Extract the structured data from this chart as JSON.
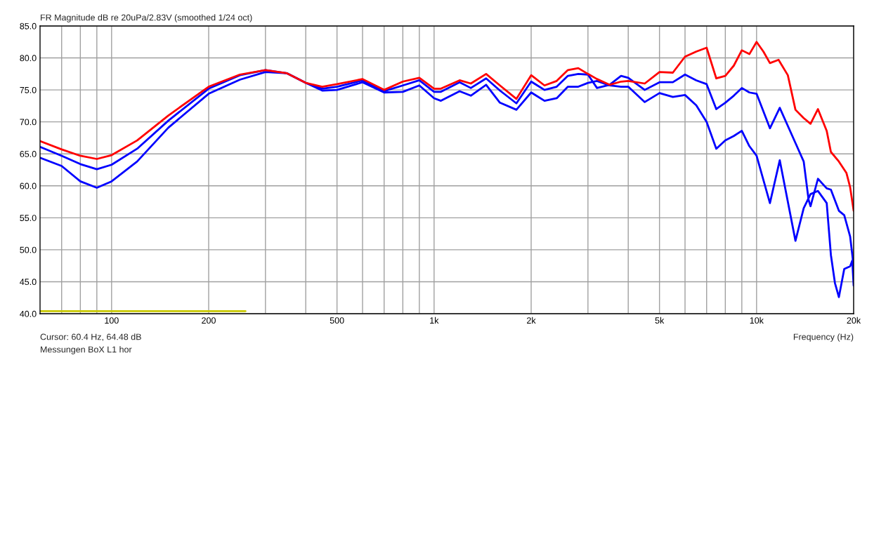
{
  "chart_data": {
    "type": "line",
    "title": "FR Magnitude dB re 20uPa/2.83V (smoothed 1/24 oct)",
    "xlabel": "Frequency (Hz)",
    "annotations": [
      "Cursor: 60.4 Hz, 64.48 dB",
      "Messungen BoX L1 hor"
    ],
    "log": "x",
    "grid": true,
    "line_style": "solid",
    "xlim": [
      60,
      20000
    ],
    "ylim": [
      40,
      85
    ],
    "xticks": [
      {
        "value": 70,
        "label": null
      },
      {
        "value": 80,
        "label": null
      },
      {
        "value": 90,
        "label": null
      },
      100,
      200,
      {
        "value": 300,
        "label": null
      },
      {
        "value": 400,
        "label": null
      },
      500,
      {
        "value": 600,
        "label": null
      },
      {
        "value": 700,
        "label": null
      },
      {
        "value": 800,
        "label": null
      },
      {
        "value": 900,
        "label": null
      },
      {
        "value": 1000,
        "label": "1k"
      },
      {
        "value": 2000,
        "label": "2k"
      },
      {
        "value": 3000,
        "label": null
      },
      {
        "value": 4000,
        "label": null
      },
      {
        "value": 5000,
        "label": "5k"
      },
      {
        "value": 6000,
        "label": null
      },
      {
        "value": 7000,
        "label": null
      },
      {
        "value": 8000,
        "label": null
      },
      {
        "value": 9000,
        "label": null
      },
      {
        "value": 10000,
        "label": "10k"
      },
      {
        "value": 20000,
        "label": "20k"
      }
    ],
    "yticks": [
      {
        "value": 40,
        "label": "40.0"
      },
      {
        "value": 45,
        "label": "45.0"
      },
      {
        "value": 50,
        "label": "50.0"
      },
      {
        "value": 55,
        "label": "55.0"
      },
      {
        "value": 60,
        "label": "60.0"
      },
      {
        "value": 65,
        "label": "65.0"
      },
      {
        "value": 70,
        "label": "70.0"
      },
      {
        "value": 75,
        "label": "75.0"
      },
      {
        "value": 80,
        "label": "80.0"
      },
      {
        "value": 85,
        "label": "85.0"
      }
    ],
    "series": [
      {
        "color": "#0000ff",
        "x": [
          60,
          70,
          80,
          90,
          100,
          120,
          150,
          200,
          250,
          300,
          350,
          400,
          450,
          500,
          600,
          700,
          800,
          900,
          1000,
          1050,
          1200,
          1300,
          1450,
          1600,
          1800,
          2000,
          2200,
          2400,
          2600,
          2800,
          3000,
          3200,
          3500,
          3800,
          4000,
          4500,
          5000,
          5500,
          6000,
          6500,
          7000,
          7500,
          8000,
          8500,
          9000,
          9500,
          10000,
          11000,
          11800,
          13200,
          14000,
          14700,
          15500,
          16500,
          17000,
          17500,
          18000,
          18700,
          19500,
          19800,
          20000
        ],
        "values": [
          64.4,
          63.1,
          60.7,
          59.7,
          60.7,
          63.8,
          69.1,
          74.4,
          76.6,
          77.8,
          77.6,
          76.1,
          74.9,
          75.0,
          76.2,
          74.6,
          74.7,
          75.7,
          73.7,
          73.3,
          74.8,
          74.1,
          75.8,
          73.0,
          71.9,
          74.6,
          73.3,
          73.7,
          75.5,
          75.5,
          76.1,
          76.4,
          75.7,
          75.5,
          75.5,
          73.1,
          74.5,
          73.9,
          74.2,
          72.6,
          70.0,
          65.8,
          67.1,
          67.8,
          68.6,
          66.2,
          64.7,
          57.3,
          64.0,
          51.4,
          56.5,
          58.7,
          59.2,
          57.3,
          49.2,
          44.8,
          42.6,
          47.0,
          47.4,
          48.3,
          44.4
        ]
      },
      {
        "color": "#0000ff",
        "x": [
          60,
          70,
          80,
          90,
          100,
          120,
          150,
          200,
          250,
          300,
          350,
          400,
          450,
          500,
          600,
          700,
          800,
          900,
          1000,
          1050,
          1200,
          1300,
          1450,
          1600,
          1800,
          2000,
          2200,
          2400,
          2600,
          2800,
          3000,
          3200,
          3500,
          3800,
          4000,
          4500,
          5000,
          5500,
          6000,
          6500,
          7000,
          7500,
          8000,
          8500,
          9000,
          9500,
          10000,
          11000,
          11800,
          13200,
          14000,
          14500,
          14700,
          15500,
          16500,
          17000,
          18000,
          18700,
          19500,
          20000
        ],
        "values": [
          66.1,
          64.7,
          63.4,
          62.6,
          63.3,
          65.8,
          70.2,
          75.2,
          77.3,
          78.1,
          77.6,
          76.1,
          75.2,
          75.5,
          76.5,
          74.8,
          75.7,
          76.5,
          74.7,
          74.7,
          76.2,
          75.3,
          76.8,
          74.9,
          72.9,
          76.3,
          75.0,
          75.5,
          77.2,
          77.5,
          77.4,
          75.3,
          75.8,
          77.2,
          76.9,
          75.0,
          76.2,
          76.2,
          77.4,
          76.5,
          75.9,
          72.0,
          73.0,
          74.1,
          75.3,
          74.6,
          74.4,
          69.0,
          72.2,
          66.7,
          63.8,
          57.8,
          56.8,
          61.1,
          59.6,
          59.4,
          56.1,
          55.4,
          52.1,
          47.4
        ]
      },
      {
        "color": "#ff0000",
        "x": [
          60,
          70,
          80,
          90,
          100,
          120,
          150,
          200,
          250,
          300,
          350,
          400,
          450,
          500,
          600,
          700,
          800,
          900,
          1000,
          1050,
          1200,
          1300,
          1450,
          1600,
          1800,
          2000,
          2200,
          2400,
          2600,
          2800,
          3000,
          3200,
          3500,
          3800,
          4000,
          4500,
          5000,
          5500,
          6000,
          6500,
          7000,
          7500,
          8000,
          8500,
          9000,
          9500,
          10000,
          10500,
          11000,
          11700,
          12500,
          13200,
          14000,
          14700,
          15500,
          16500,
          17000,
          18000,
          19000,
          19500,
          20000
        ],
        "values": [
          67.0,
          65.7,
          64.7,
          64.2,
          64.8,
          67.1,
          71.0,
          75.5,
          77.4,
          78.1,
          77.6,
          76.1,
          75.5,
          75.9,
          76.7,
          75.0,
          76.3,
          76.9,
          75.2,
          75.2,
          76.5,
          76.0,
          77.5,
          75.7,
          73.6,
          77.3,
          75.7,
          76.4,
          78.1,
          78.4,
          77.5,
          76.7,
          75.8,
          76.3,
          76.4,
          76.0,
          77.8,
          77.7,
          80.2,
          81.0,
          81.6,
          76.8,
          77.2,
          78.8,
          81.2,
          80.6,
          82.5,
          81.0,
          79.2,
          79.7,
          77.3,
          71.9,
          70.6,
          69.7,
          72.0,
          68.6,
          65.3,
          63.8,
          62.0,
          59.8,
          56.1
        ]
      },
      {
        "color": "#c8c800",
        "x": [
          60,
          260
        ],
        "values": [
          40.4,
          40.4
        ]
      }
    ]
  }
}
